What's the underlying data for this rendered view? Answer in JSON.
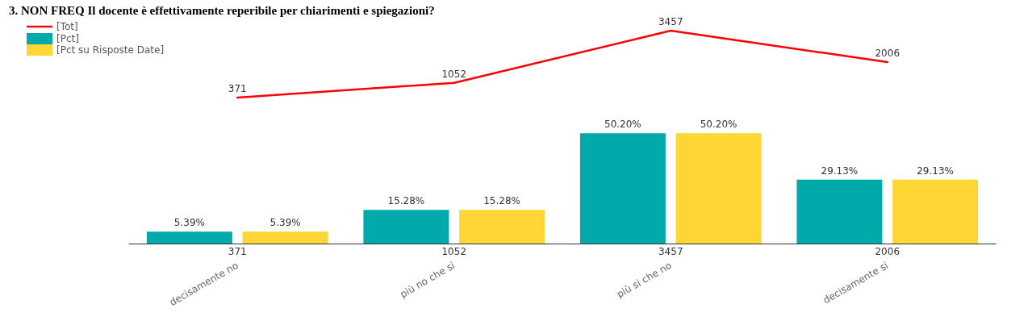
{
  "chart_data": [
    {
      "type": "line",
      "title": "3. NON FREQ Il docente è effettivamente reperibile per chiarimenti e spiegazioni?",
      "categories": [
        null,
        null,
        null,
        null
      ],
      "series": [
        {
          "name": "[Tot]",
          "color": "#ff0000",
          "values": [
            371,
            1052,
            3457,
            2006
          ],
          "value_labels": [
            "371",
            "1052",
            "3457",
            "2006"
          ]
        }
      ],
      "legend": "top left",
      "marker": "none",
      "line_style": "solid"
    },
    {
      "type": "bar",
      "categories": [
        "decisamente no",
        "più no che si",
        "più si che no",
        "decisamente si"
      ],
      "series": [
        {
          "name": "[Pct]",
          "color": "#00aaaa",
          "values": [
            5.39,
            15.28,
            50.2,
            29.13
          ],
          "value_labels": [
            "5.39%",
            "15.28%",
            "50.20%",
            "29.13%"
          ]
        },
        {
          "name": "[Pct su Risposte Date]",
          "color": "#ffd633",
          "values": [
            5.39,
            15.28,
            50.2,
            29.13
          ],
          "value_labels": [
            "5.39%",
            "15.28%",
            "50.20%",
            "29.13%"
          ]
        }
      ],
      "legend": "top left"
    }
  ]
}
